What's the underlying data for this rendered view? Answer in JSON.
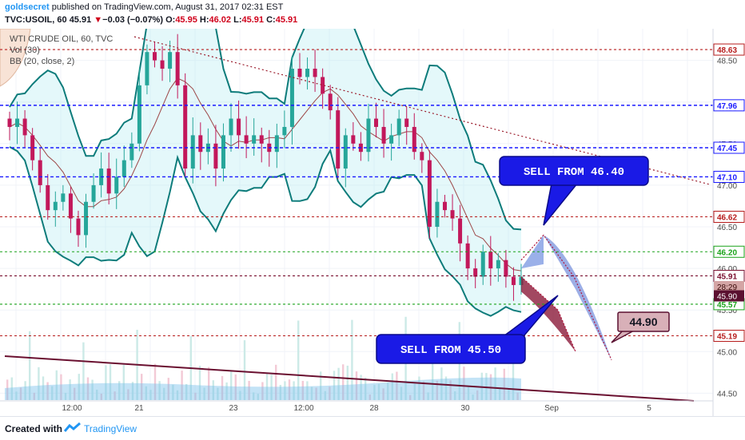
{
  "header": {
    "author": "goldsecret",
    "published_text": " published on TradingView.com, August 31, 2017 02:31 EST",
    "symbol": "TVC:USOIL, 60",
    "last": "45.91",
    "change_arrow": "▼",
    "change": "−0.03 (−0.07%)",
    "open_label": "O:",
    "open": "45.95",
    "high_label": "H:",
    "high": "46.02",
    "low_label": "L:",
    "low": "45.91",
    "close_label": "C:",
    "close": "45.91"
  },
  "legend": {
    "title": "WTI CRUDE OIL, 60, TVC",
    "vol": "Vol (30)",
    "bb": "BB (20, close, 2)"
  },
  "footer": {
    "created_with": "Created with",
    "brand": "TradingView"
  },
  "colors": {
    "candle_up": "#26a69a",
    "candle_down": "#c2185b",
    "bb_band": "#0e7c7b",
    "bb_fill": "#b2ebf2",
    "bb_basis": "#8b1a1a",
    "red_level": "#b71c1c",
    "blue_level": "#1a1aff",
    "green_level": "#1aa31a",
    "callout_blue": "#1a1ae6"
  },
  "chart_data": {
    "type": "candlestick",
    "y_range": [
      44.2,
      48.8
    ],
    "x_ticks": [
      "12:00",
      "21",
      "23",
      "12:00",
      "28",
      "30",
      "Sep",
      "5"
    ],
    "y_ticks": [
      "48.50",
      "48.00",
      "47.50",
      "47.00",
      "46.50",
      "46.00",
      "45.50",
      "45.00",
      "44.50"
    ],
    "levels": [
      {
        "label": "48.63",
        "value": 48.63,
        "style": "red"
      },
      {
        "label": "47.96",
        "value": 47.96,
        "style": "blue"
      },
      {
        "label": "47.45",
        "value": 47.45,
        "style": "blue"
      },
      {
        "label": "47.10",
        "value": 47.1,
        "style": "blue"
      },
      {
        "label": "46.62",
        "value": 46.62,
        "style": "red"
      },
      {
        "label": "46.20",
        "value": 46.2,
        "style": "green"
      },
      {
        "label": "45.91",
        "value": 45.91,
        "style": "maroon"
      },
      {
        "label": "45.57",
        "value": 45.57,
        "style": "green"
      },
      {
        "label": "45.19",
        "value": 45.19,
        "style": "red"
      }
    ],
    "price_tags": [
      {
        "label": "28:29",
        "value": 45.78,
        "bg": "#d4a5a5",
        "fg": "#3a0a0a"
      },
      {
        "label": "45.90",
        "value": 45.67,
        "bg": "#5a1030",
        "fg": "#ffffff"
      }
    ],
    "closes": [
      47.7,
      47.8,
      47.6,
      47.3,
      47.0,
      46.7,
      46.8,
      46.9,
      46.6,
      46.4,
      46.8,
      47.0,
      47.2,
      46.9,
      47.1,
      47.3,
      47.5,
      48.2,
      48.6,
      48.5,
      48.4,
      48.6,
      48.2,
      47.2,
      47.6,
      47.4,
      47.5,
      47.2,
      47.6,
      47.8,
      47.6,
      47.5,
      47.6,
      47.5,
      47.4,
      47.6,
      47.7,
      48.4,
      48.3,
      48.4,
      48.3,
      48.1,
      47.9,
      47.2,
      47.6,
      47.5,
      47.4,
      47.8,
      47.7,
      47.5,
      47.6,
      47.8,
      47.7,
      47.4,
      47.3,
      46.5,
      46.8,
      46.7,
      46.6,
      46.3,
      46.0,
      45.9,
      46.2,
      46.0,
      46.1,
      45.9,
      45.8,
      45.9
    ],
    "drawings": [
      {
        "type": "callout",
        "text": "SELL FROM 46.40"
      },
      {
        "type": "callout",
        "text": "SELL FROM 45.50"
      },
      {
        "type": "callout",
        "text": "44.90"
      },
      {
        "type": "projection",
        "path": [
          46.1,
          46.4,
          45.9,
          44.9
        ]
      },
      {
        "type": "projection",
        "path": [
          45.9,
          45.5,
          45.0
        ]
      }
    ]
  }
}
